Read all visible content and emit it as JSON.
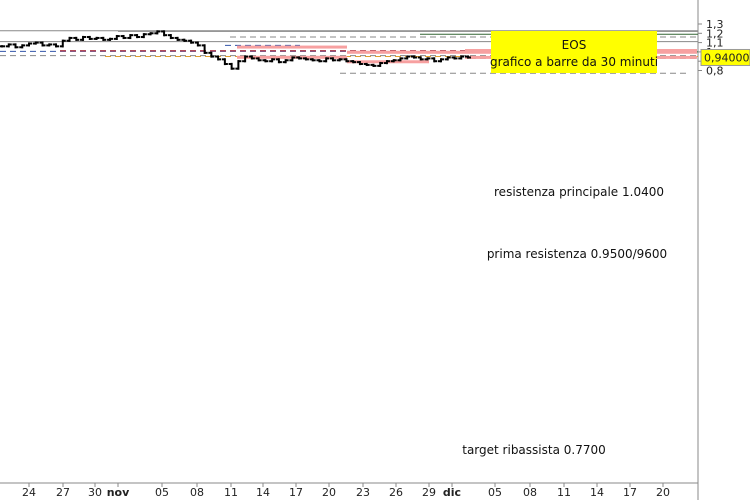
{
  "chart_data": {
    "type": "bar",
    "title_box": [
      "EOS",
      "grafico a barre da 30 minuti"
    ],
    "x_ticks": [
      "24",
      "27",
      "30",
      "nov",
      "05",
      "08",
      "11",
      "14",
      "17",
      "20",
      "23",
      "26",
      "29",
      "dic",
      "05",
      "08",
      "11",
      "14",
      "17",
      "20"
    ],
    "y_ticks": [
      "1,3",
      "1,2",
      "1,1",
      "1",
      "0,9",
      "0,8"
    ],
    "y_range": [
      0.75,
      1.32
    ],
    "last_price_label": "0,940000",
    "last_price": 0.94,
    "grid": false,
    "annotations": [
      {
        "text": "resistenza principale 1.0400"
      },
      {
        "text": "prima resistenza 0.9500/9600"
      },
      {
        "text": "target ribassista 0.7700"
      }
    ],
    "zones": [
      {
        "label": "zone-1",
        "top": 1.068,
        "bottom": 1.057
      },
      {
        "label": "zone-2",
        "top": 1.012,
        "bottom": 1.002
      },
      {
        "label": "zone-3",
        "top": 0.958,
        "bottom": 0.942
      },
      {
        "label": "zone-4",
        "top": 0.91,
        "bottom": 0.899
      },
      {
        "label": "zone-5",
        "top": 1.031,
        "bottom": 1.021
      },
      {
        "label": "zone-6",
        "top": 0.957,
        "bottom": 0.946
      }
    ],
    "horizontal_levels": [
      {
        "value": 1.227,
        "style": "solid",
        "color": "#888888"
      },
      {
        "value": 1.221,
        "style": "solid",
        "color": "#888888"
      },
      {
        "value": 1.11,
        "style": "solid",
        "color": "#888888"
      },
      {
        "value": 1.19,
        "style": "solid",
        "color": "#336633"
      },
      {
        "value": 1.0,
        "style": "solid",
        "color": "#336633"
      },
      {
        "value": 1.16,
        "style": "dashed",
        "color": "#888888"
      },
      {
        "value": 1.07,
        "style": "dashed",
        "color": "#3355aa"
      },
      {
        "value": 1.005,
        "style": "dashed",
        "color": "#3355aa"
      },
      {
        "value": 1.01,
        "style": "dashed",
        "color": "#aa3344"
      },
      {
        "value": 1.014,
        "style": "dashed",
        "color": "#aa3344"
      },
      {
        "value": 0.96,
        "style": "dashed",
        "color": "#888888"
      },
      {
        "value": 0.95,
        "style": "dashed",
        "color": "#e0a030"
      },
      {
        "value": 0.93,
        "style": "dashed",
        "color": "#888888"
      },
      {
        "value": 0.77,
        "style": "dashed",
        "color": "#888888"
      }
    ],
    "price_path": [
      1.06,
      1.08,
      1.05,
      1.07,
      1.09,
      1.1,
      1.07,
      1.08,
      1.06,
      1.12,
      1.15,
      1.13,
      1.16,
      1.14,
      1.15,
      1.13,
      1.14,
      1.17,
      1.15,
      1.18,
      1.16,
      1.19,
      1.2,
      1.22,
      1.18,
      1.15,
      1.13,
      1.12,
      1.1,
      1.07,
      0.99,
      0.95,
      0.92,
      0.87,
      0.82,
      0.9,
      0.95,
      0.93,
      0.91,
      0.9,
      0.92,
      0.89,
      0.91,
      0.94,
      0.93,
      0.92,
      0.91,
      0.9,
      0.93,
      0.91,
      0.92,
      0.9,
      0.89,
      0.87,
      0.86,
      0.85,
      0.88,
      0.9,
      0.91,
      0.93,
      0.95,
      0.94,
      0.92,
      0.93,
      0.9,
      0.92,
      0.94,
      0.93,
      0.95,
      0.94
    ],
    "colors": {
      "bars": "#000000",
      "zone": "#f7a0a0",
      "title_bg": "#ffff00",
      "last_price_bg": "#ffff00"
    }
  }
}
